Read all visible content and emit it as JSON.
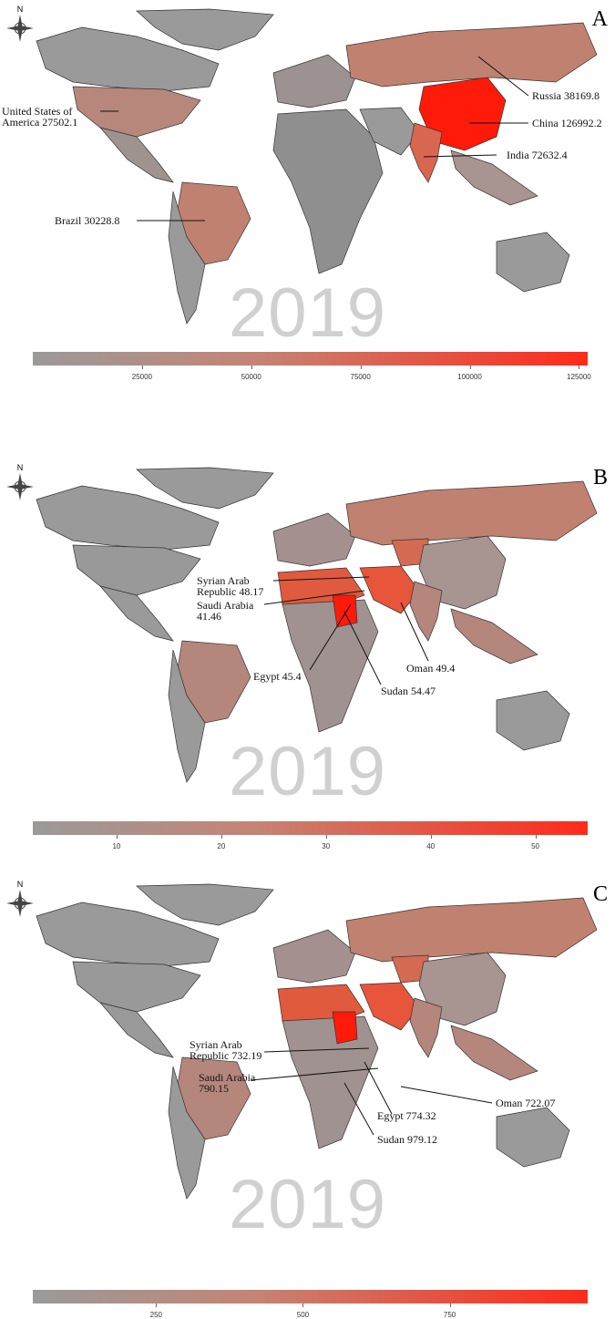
{
  "year_watermark": "2019",
  "compass_letter": "N",
  "colors": {
    "low": "#9a9a9a",
    "mid": "#c58474",
    "high": "#ff2a1a",
    "max": "#ff1a0a"
  },
  "panels": [
    {
      "letter": "A",
      "labels": [
        {
          "text": "United States of\nAmerica 27502.1"
        },
        {
          "text": "Brazil 30228.8"
        },
        {
          "text": "Russia 38169.8"
        },
        {
          "text": "China 126992.2"
        },
        {
          "text": "India 72632.4"
        }
      ],
      "colorbar": {
        "ticks": [
          "25000",
          "50000",
          "75000",
          "100000",
          "125000"
        ],
        "tick_values": [
          25000,
          50000,
          75000,
          100000,
          125000
        ],
        "min": 0,
        "max": 127000
      }
    },
    {
      "letter": "B",
      "labels": [
        {
          "text": "Syrian Arab\nRepublic 48.17"
        },
        {
          "text": "Saudi Arabia\n41.46"
        },
        {
          "text": "Egypt 45.4"
        },
        {
          "text": "Oman 49.4"
        },
        {
          "text": "Sudan 54.47"
        }
      ],
      "colorbar": {
        "ticks": [
          "10",
          "20",
          "30",
          "40",
          "50"
        ],
        "tick_values": [
          10,
          20,
          30,
          40,
          50
        ],
        "min": 2,
        "max": 55
      }
    },
    {
      "letter": "C",
      "labels": [
        {
          "text": "Syrian Arab\nRepublic 732.19"
        },
        {
          "text": "Saudi Arabia\n790.15"
        },
        {
          "text": "Oman 722.07"
        },
        {
          "text": "Egypt 774.32"
        },
        {
          "text": "Sudan 979.12"
        }
      ],
      "colorbar": {
        "ticks": [
          "250",
          "500",
          "750"
        ],
        "tick_values": [
          250,
          500,
          750
        ],
        "min": 40,
        "max": 985
      }
    }
  ]
}
